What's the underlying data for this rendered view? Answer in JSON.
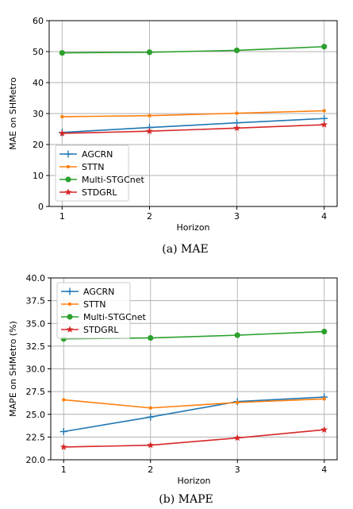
{
  "chart_data": [
    {
      "type": "line",
      "caption": "(a) MAE",
      "xlabel": "Horizon",
      "ylabel": "MAE on SHMetro",
      "x": [
        1,
        2,
        3,
        4
      ],
      "xticks": [
        "1",
        "2",
        "3",
        "4"
      ],
      "ylim": [
        0,
        60
      ],
      "yticks": [
        "0",
        "10",
        "20",
        "30",
        "40",
        "50",
        "60"
      ],
      "grid": true,
      "legend_position": "lower-left",
      "series": [
        {
          "name": "AGCRN",
          "color": "#1f77b4",
          "marker": "plus",
          "values": [
            23.9,
            25.5,
            27.0,
            28.4
          ]
        },
        {
          "name": "STTN",
          "color": "#ff7f0e",
          "marker": "dot-small",
          "values": [
            29.0,
            29.3,
            30.1,
            30.9
          ]
        },
        {
          "name": "Multi-STGCnet",
          "color": "#2ca02c",
          "marker": "circle",
          "values": [
            49.6,
            49.8,
            50.4,
            51.6
          ]
        },
        {
          "name": "STDGRL",
          "color": "#d62728",
          "marker": "star",
          "values": [
            23.6,
            24.3,
            25.3,
            26.4
          ]
        }
      ]
    },
    {
      "type": "line",
      "caption": "(b) MAPE",
      "xlabel": "Horizon",
      "ylabel": "MAPE on SHMetro (%)",
      "x": [
        1,
        2,
        3,
        4
      ],
      "xticks": [
        "1",
        "2",
        "3",
        "4"
      ],
      "ylim": [
        20,
        40
      ],
      "yticks": [
        "20.0",
        "22.5",
        "25.0",
        "27.5",
        "30.0",
        "32.5",
        "35.0",
        "37.5",
        "40.0"
      ],
      "grid": true,
      "legend_position": "upper-left",
      "series": [
        {
          "name": "AGCRN",
          "color": "#1f77b4",
          "marker": "plus",
          "values": [
            23.1,
            24.7,
            26.4,
            26.9
          ]
        },
        {
          "name": "STTN",
          "color": "#ff7f0e",
          "marker": "dot-small",
          "values": [
            26.6,
            25.7,
            26.3,
            26.7
          ]
        },
        {
          "name": "Multi-STGCnet",
          "color": "#2ca02c",
          "marker": "circle",
          "values": [
            33.3,
            33.4,
            33.7,
            34.1
          ]
        },
        {
          "name": "STDGRL",
          "color": "#d62728",
          "marker": "star",
          "values": [
            21.4,
            21.6,
            22.4,
            23.3
          ]
        }
      ]
    }
  ]
}
